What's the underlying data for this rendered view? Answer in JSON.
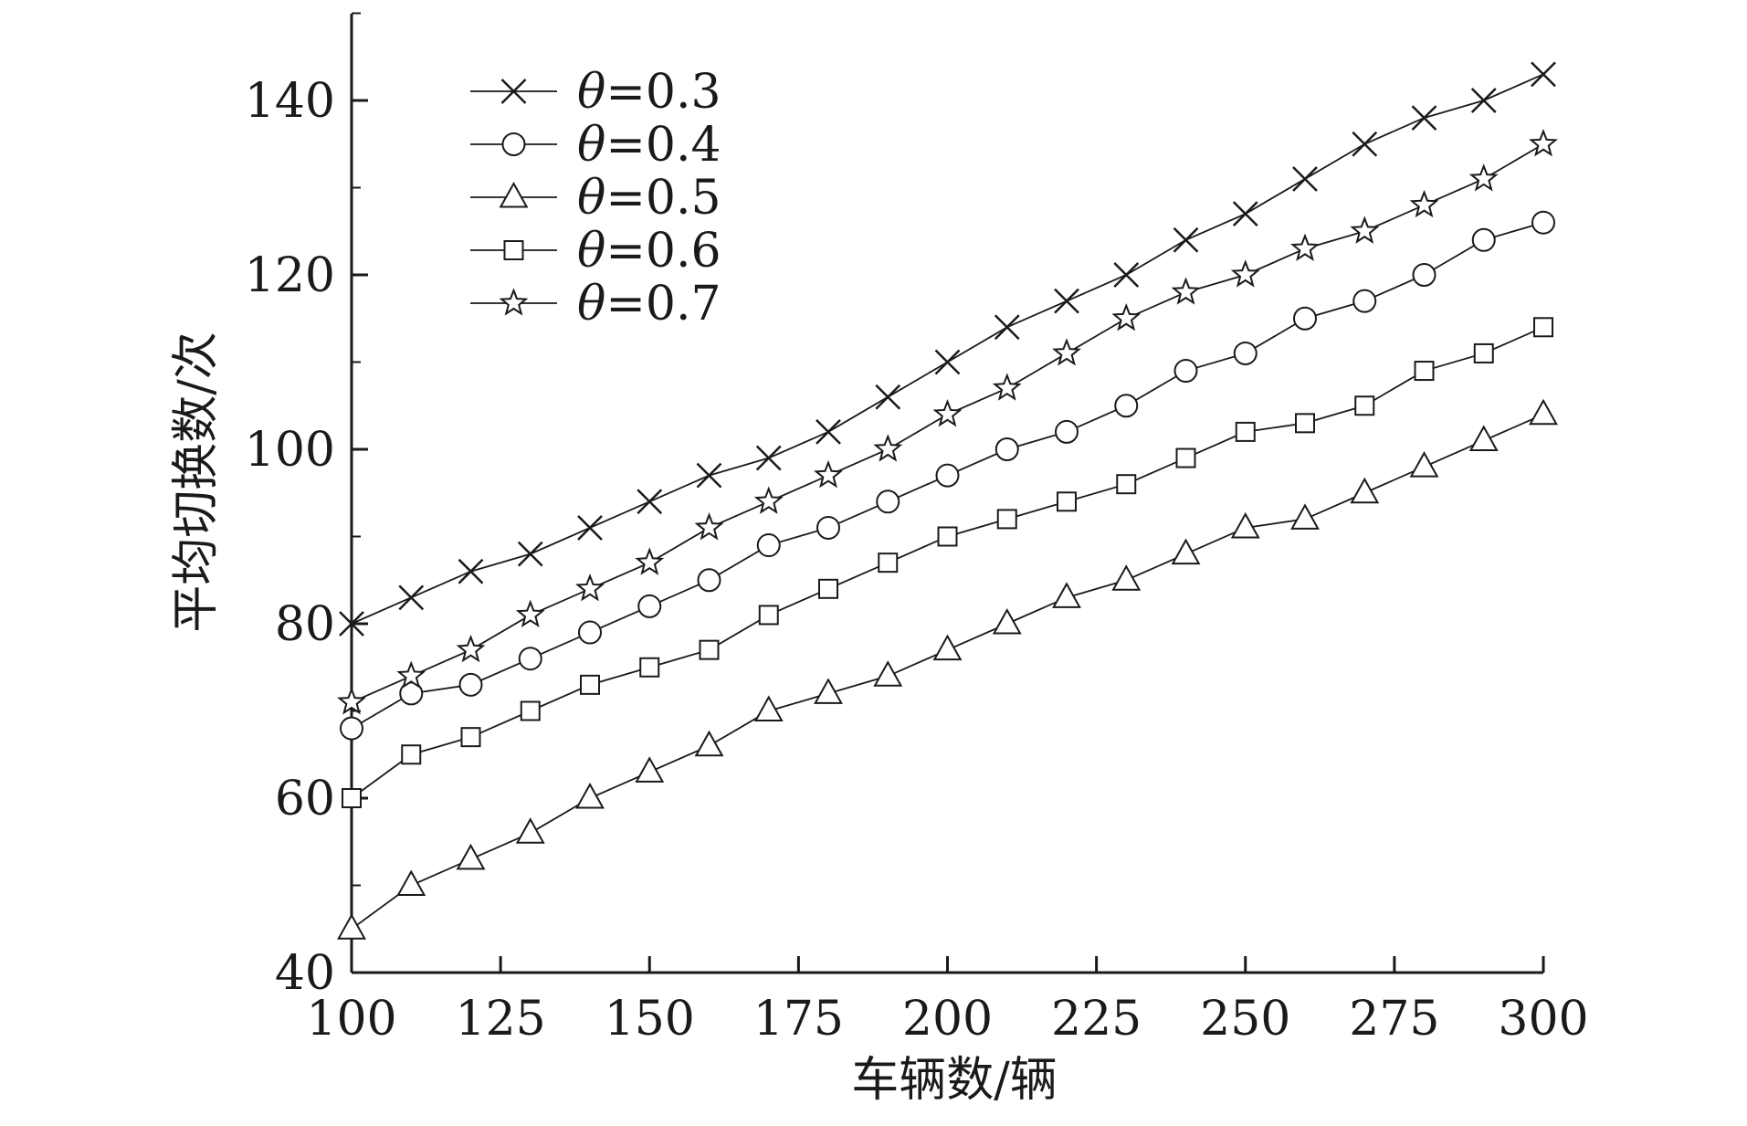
{
  "chart_data": {
    "type": "line",
    "title": "",
    "xlabel": "车辆数/辆",
    "ylabel": "平均切换数/次",
    "xlim": [
      100,
      300
    ],
    "ylim": [
      40,
      150
    ],
    "xticks": [
      100,
      125,
      150,
      175,
      200,
      225,
      250,
      275,
      300
    ],
    "yticks": [
      40,
      60,
      80,
      100,
      120,
      140
    ],
    "grid": false,
    "legend": "top-left",
    "x": [
      100,
      110,
      120,
      130,
      140,
      150,
      160,
      170,
      180,
      190,
      200,
      210,
      220,
      230,
      240,
      250,
      260,
      270,
      280,
      290,
      300
    ],
    "series": [
      {
        "name": "θ=0.3",
        "legend_var": "θ",
        "legend_rest": "=0.3",
        "marker": "x",
        "values": [
          80,
          83,
          86,
          88,
          91,
          94,
          97,
          99,
          102,
          106,
          110,
          114,
          117,
          120,
          124,
          127,
          131,
          135,
          138,
          140,
          143
        ]
      },
      {
        "name": "θ=0.4",
        "legend_var": "θ",
        "legend_rest": "=0.4",
        "marker": "circle",
        "values": [
          68,
          72,
          73,
          76,
          79,
          82,
          85,
          89,
          91,
          94,
          97,
          100,
          102,
          105,
          109,
          111,
          115,
          117,
          120,
          124,
          126
        ]
      },
      {
        "name": "θ=0.5",
        "legend_var": "θ",
        "legend_rest": "=0.5",
        "marker": "triangle",
        "values": [
          45,
          50,
          53,
          56,
          60,
          63,
          66,
          70,
          72,
          74,
          77,
          80,
          83,
          85,
          88,
          91,
          92,
          95,
          98,
          101,
          104
        ]
      },
      {
        "name": "θ=0.6",
        "legend_var": "θ",
        "legend_rest": "=0.6",
        "marker": "square",
        "values": [
          60,
          65,
          67,
          70,
          73,
          75,
          77,
          81,
          84,
          87,
          90,
          92,
          94,
          96,
          99,
          102,
          103,
          105,
          109,
          111,
          114
        ]
      },
      {
        "name": "θ=0.7",
        "legend_var": "θ",
        "legend_rest": "=0.7",
        "marker": "star",
        "values": [
          71,
          74,
          77,
          81,
          84,
          87,
          91,
          94,
          97,
          100,
          104,
          107,
          111,
          115,
          118,
          120,
          123,
          125,
          128,
          131,
          135
        ]
      }
    ],
    "colors": {
      "line": "#1a1a1a",
      "marker_fill": "#ffffff"
    }
  }
}
